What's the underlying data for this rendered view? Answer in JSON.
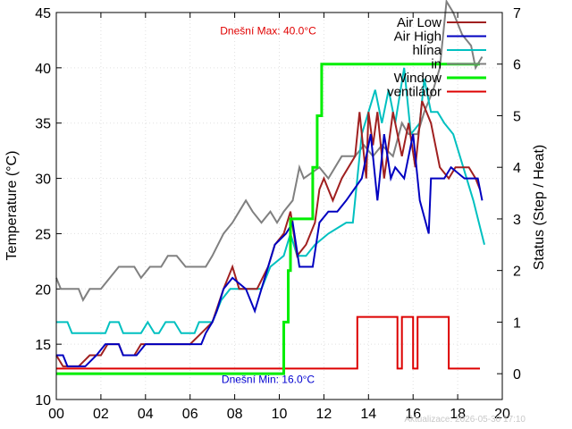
{
  "chart_data": {
    "type": "line",
    "ylabel": "Temperature (°C)",
    "y2label": "Status (Step / Heat)",
    "xlim": [
      0,
      20
    ],
    "ylim": [
      10,
      45
    ],
    "y2lim": [
      -0.5,
      7
    ],
    "x_ticks": [
      0,
      2,
      4,
      6,
      8,
      10,
      12,
      14,
      16,
      18,
      20
    ],
    "x_tick_labels": [
      "00",
      "02",
      "04",
      "06",
      "08",
      "10",
      "12",
      "14",
      "16",
      "18",
      "20"
    ],
    "y_ticks": [
      10,
      15,
      20,
      25,
      30,
      35,
      40,
      45
    ],
    "y2_ticks": [
      0,
      1,
      2,
      3,
      4,
      5,
      6,
      7
    ],
    "grid": true,
    "legend_position": "top-right",
    "annotations": [
      {
        "text": "Dnešní Max: 40.0°C",
        "color": "#e00000",
        "at": [
          9.5,
          43
        ]
      },
      {
        "text": "Dnešní Min: 16.0°C",
        "color": "#0000d0",
        "at": [
          9.5,
          11.5
        ]
      }
    ],
    "footer": "Aktualizace: 2026-05-30 17:10",
    "series": [
      {
        "name": "Air Low",
        "axis": "y",
        "color": "#a02020",
        "points": [
          [
            0,
            14
          ],
          [
            0.3,
            13
          ],
          [
            1,
            13
          ],
          [
            1.5,
            14
          ],
          [
            2,
            14
          ],
          [
            2.3,
            15
          ],
          [
            2.8,
            15
          ],
          [
            3,
            14
          ],
          [
            3.5,
            14
          ],
          [
            3.8,
            15
          ],
          [
            5,
            15
          ],
          [
            6,
            15
          ],
          [
            6.5,
            16
          ],
          [
            7,
            17
          ],
          [
            7.5,
            20
          ],
          [
            7.9,
            22
          ],
          [
            8.2,
            20
          ],
          [
            9,
            20
          ],
          [
            9.5,
            22
          ],
          [
            9.8,
            24
          ],
          [
            10.2,
            25
          ],
          [
            10.5,
            27
          ],
          [
            10.8,
            23
          ],
          [
            11.2,
            24
          ],
          [
            11.6,
            26
          ],
          [
            11.8,
            29
          ],
          [
            12,
            30
          ],
          [
            12.4,
            28
          ],
          [
            12.8,
            30
          ],
          [
            13.4,
            32
          ],
          [
            13.6,
            36
          ],
          [
            13.9,
            30
          ],
          [
            14,
            36
          ],
          [
            14.2,
            33
          ],
          [
            14.4,
            36
          ],
          [
            14.7,
            30
          ],
          [
            15.1,
            36
          ],
          [
            15.5,
            32
          ],
          [
            15.8,
            35
          ],
          [
            16.1,
            31
          ],
          [
            16.4,
            37
          ],
          [
            16.8,
            35
          ],
          [
            17.2,
            31
          ],
          [
            17.6,
            30
          ],
          [
            17.9,
            31
          ],
          [
            18.5,
            31
          ],
          [
            18.8,
            30
          ],
          [
            19,
            29
          ]
        ]
      },
      {
        "name": "Air High",
        "axis": "y",
        "color": "#0000c0",
        "points": [
          [
            0,
            14
          ],
          [
            0.3,
            14
          ],
          [
            0.5,
            13
          ],
          [
            1.3,
            13
          ],
          [
            1.8,
            14
          ],
          [
            2.2,
            15
          ],
          [
            2.8,
            15
          ],
          [
            3,
            14
          ],
          [
            3.6,
            14
          ],
          [
            4,
            15
          ],
          [
            6.5,
            15
          ],
          [
            6.7,
            16
          ],
          [
            7,
            17
          ],
          [
            7.2,
            18
          ],
          [
            7.5,
            20
          ],
          [
            7.9,
            21
          ],
          [
            8.5,
            20
          ],
          [
            8.9,
            18
          ],
          [
            9.5,
            22
          ],
          [
            9.8,
            24
          ],
          [
            10.3,
            25
          ],
          [
            10.6,
            26
          ],
          [
            10.9,
            22
          ],
          [
            11.5,
            22
          ],
          [
            11.8,
            26
          ],
          [
            12.2,
            27
          ],
          [
            12.6,
            27
          ],
          [
            13,
            28
          ],
          [
            13.7,
            30
          ],
          [
            14.1,
            34
          ],
          [
            14.4,
            28
          ],
          [
            14.7,
            34
          ],
          [
            15,
            30
          ],
          [
            15.2,
            31
          ],
          [
            15.6,
            30
          ],
          [
            16,
            34
          ],
          [
            16.3,
            28
          ],
          [
            16.7,
            25
          ],
          [
            16.8,
            30
          ],
          [
            17.4,
            30
          ],
          [
            17.7,
            31
          ],
          [
            18.3,
            30
          ],
          [
            18.9,
            30
          ],
          [
            19.1,
            28
          ]
        ]
      },
      {
        "name": "hlína",
        "axis": "y",
        "color": "#00c0c0",
        "points": [
          [
            0,
            17
          ],
          [
            0.5,
            17
          ],
          [
            0.7,
            16
          ],
          [
            2.2,
            16
          ],
          [
            2.4,
            17
          ],
          [
            2.8,
            17
          ],
          [
            3,
            16
          ],
          [
            3.8,
            16
          ],
          [
            4.1,
            17
          ],
          [
            4.4,
            16
          ],
          [
            4.6,
            16
          ],
          [
            4.9,
            17
          ],
          [
            5.3,
            17
          ],
          [
            5.6,
            16
          ],
          [
            6.2,
            16
          ],
          [
            6.4,
            17
          ],
          [
            7,
            17
          ],
          [
            7.4,
            19
          ],
          [
            7.8,
            20
          ],
          [
            8.6,
            20
          ],
          [
            9.2,
            20
          ],
          [
            9.6,
            22
          ],
          [
            10.2,
            23
          ],
          [
            10.5,
            25
          ],
          [
            10.8,
            23
          ],
          [
            11.2,
            23
          ],
          [
            11.6,
            24
          ],
          [
            12.2,
            25
          ],
          [
            13,
            26
          ],
          [
            13.3,
            26
          ],
          [
            13.7,
            34
          ],
          [
            14,
            36
          ],
          [
            14.3,
            38
          ],
          [
            14.6,
            35
          ],
          [
            14.9,
            38
          ],
          [
            15.2,
            35
          ],
          [
            15.6,
            40
          ],
          [
            15.9,
            34
          ],
          [
            16.3,
            35
          ],
          [
            16.5,
            39
          ],
          [
            16.8,
            36
          ],
          [
            17.1,
            36
          ],
          [
            17.4,
            35
          ],
          [
            17.8,
            34
          ],
          [
            18.1,
            32
          ],
          [
            18.4,
            30
          ],
          [
            18.7,
            28
          ],
          [
            19.2,
            24
          ]
        ]
      },
      {
        "name": "in",
        "axis": "y",
        "color": "#808080",
        "points": [
          [
            0,
            21
          ],
          [
            0.2,
            20
          ],
          [
            1,
            20
          ],
          [
            1.2,
            19
          ],
          [
            1.5,
            20
          ],
          [
            2,
            20
          ],
          [
            2.4,
            21
          ],
          [
            2.8,
            22
          ],
          [
            3.5,
            22
          ],
          [
            3.8,
            21
          ],
          [
            4.2,
            22
          ],
          [
            4.7,
            22
          ],
          [
            5,
            23
          ],
          [
            5.4,
            23
          ],
          [
            5.8,
            22
          ],
          [
            6.7,
            22
          ],
          [
            7,
            23
          ],
          [
            7.5,
            25
          ],
          [
            7.9,
            26
          ],
          [
            8.2,
            27
          ],
          [
            8.5,
            28
          ],
          [
            8.8,
            27
          ],
          [
            9.2,
            26
          ],
          [
            9.6,
            27
          ],
          [
            9.9,
            26
          ],
          [
            10.2,
            27
          ],
          [
            10.6,
            28
          ],
          [
            10.9,
            31
          ],
          [
            11.1,
            30
          ],
          [
            11.8,
            31
          ],
          [
            12.2,
            30
          ],
          [
            12.5,
            31
          ],
          [
            12.8,
            32
          ],
          [
            13.4,
            32
          ],
          [
            13.8,
            33
          ],
          [
            14.2,
            32
          ],
          [
            14.6,
            33
          ],
          [
            15.1,
            32
          ],
          [
            15.5,
            35
          ],
          [
            15.8,
            34
          ],
          [
            16.2,
            34
          ],
          [
            16.5,
            36
          ],
          [
            16.9,
            38
          ],
          [
            17.2,
            40
          ],
          [
            17.5,
            46
          ],
          [
            17.8,
            45
          ],
          [
            18.2,
            43
          ],
          [
            18.6,
            42
          ],
          [
            18.8,
            40
          ],
          [
            19.1,
            41
          ]
        ]
      },
      {
        "name": "Window",
        "axis": "y2",
        "color": "#00ee00",
        "points": [
          [
            0,
            0
          ],
          [
            10.2,
            0
          ],
          [
            10.2,
            1
          ],
          [
            10.4,
            1
          ],
          [
            10.4,
            2
          ],
          [
            10.5,
            2
          ],
          [
            10.5,
            3
          ],
          [
            11.5,
            3
          ],
          [
            11.5,
            4
          ],
          [
            11.7,
            4
          ],
          [
            11.7,
            5
          ],
          [
            11.9,
            5
          ],
          [
            11.9,
            6
          ],
          [
            19,
            6
          ]
        ]
      },
      {
        "name": "ventilátor",
        "axis": "y2",
        "color": "#dd0000",
        "points": [
          [
            0,
            0.1
          ],
          [
            13.5,
            0.1
          ],
          [
            13.5,
            1.1
          ],
          [
            15.3,
            1.1
          ],
          [
            15.3,
            0.1
          ],
          [
            15.5,
            0.1
          ],
          [
            15.5,
            1.1
          ],
          [
            16,
            1.1
          ],
          [
            16,
            0.1
          ],
          [
            16.2,
            0.1
          ],
          [
            16.2,
            1.1
          ],
          [
            17.6,
            1.1
          ],
          [
            17.6,
            0.1
          ],
          [
            19,
            0.1
          ]
        ]
      }
    ]
  }
}
